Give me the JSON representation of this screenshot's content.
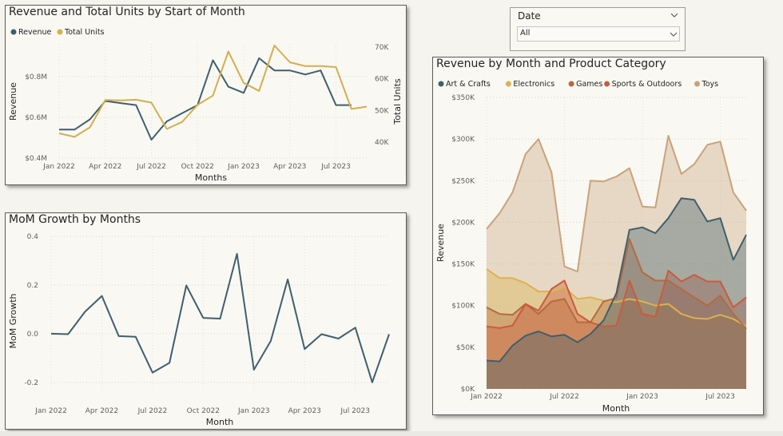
{
  "slicer": {
    "title": "Date",
    "value": "All"
  },
  "chart_data": [
    {
      "type": "line",
      "title": "Revenue and Total Units by Start of Month",
      "xlabel": "Months",
      "ylabel": "Revenue",
      "y2label": "Total Units",
      "x": [
        "2022-01",
        "2022-02",
        "2022-03",
        "2022-04",
        "2022-05",
        "2022-06",
        "2022-07",
        "2022-08",
        "2022-09",
        "2022-10",
        "2022-11",
        "2022-12",
        "2023-01",
        "2023-02",
        "2023-03",
        "2023-04",
        "2023-05",
        "2023-06",
        "2023-07",
        "2023-08",
        "2023-09"
      ],
      "x_ticks": [
        "Jan 2022",
        "Apr 2022",
        "Jul 2022",
        "Oct 2022",
        "Jan 2023",
        "Apr 2023",
        "Jul 2023"
      ],
      "y_ticks": [
        "$0.4M",
        "$0.6M",
        "$0.8M"
      ],
      "y2_ticks": [
        "40K",
        "50K",
        "60K",
        "70K"
      ],
      "ylim": [
        0.4,
        0.96
      ],
      "y2lim": [
        35,
        71
      ],
      "legend_position": "top-left",
      "series": [
        {
          "name": "Revenue",
          "axis": "left",
          "color": "#3f5f6d",
          "values": [
            0.54,
            0.54,
            0.59,
            0.68,
            0.67,
            0.66,
            0.49,
            0.58,
            0.62,
            0.66,
            0.88,
            0.75,
            0.72,
            0.89,
            0.83,
            0.83,
            0.81,
            0.83,
            0.66,
            0.66,
            null
          ]
        },
        {
          "name": "Total Units",
          "axis": "right",
          "color": "#d4ae4f",
          "values": [
            42.8,
            41.7,
            44.7,
            53.3,
            53.2,
            53.4,
            52.5,
            44.2,
            46.4,
            51.8,
            54.7,
            68.6,
            58.7,
            56.2,
            70.5,
            65.2,
            64.0,
            64.0,
            63.7,
            50.5,
            51.2
          ]
        }
      ],
      "grid": true
    },
    {
      "type": "line",
      "title": "MoM Growth by Months",
      "xlabel": "Month",
      "ylabel": "MoM Growth",
      "x": [
        "2022-01",
        "2022-02",
        "2022-03",
        "2022-04",
        "2022-05",
        "2022-06",
        "2022-07",
        "2022-08",
        "2022-09",
        "2022-10",
        "2022-11",
        "2022-12",
        "2023-01",
        "2023-02",
        "2023-03",
        "2023-04",
        "2023-05",
        "2023-06",
        "2023-07",
        "2023-08",
        "2023-09"
      ],
      "x_ticks": [
        "Jan 2022",
        "Apr 2022",
        "Jul 2022",
        "Oct 2022",
        "Jan 2023",
        "Apr 2023",
        "Jul 2023"
      ],
      "y_ticks": [
        "-0.2",
        "0.0",
        "0.2",
        "0.4"
      ],
      "ylim": [
        -0.24,
        0.4
      ],
      "series": [
        {
          "color": "#3f5f6d",
          "values": [
            0.0,
            -0.002,
            0.09,
            0.155,
            -0.01,
            -0.013,
            -0.16,
            -0.12,
            0.198,
            0.065,
            0.062,
            0.328,
            -0.148,
            -0.03,
            0.223,
            -0.063,
            -0.002,
            -0.02,
            0.025,
            -0.2,
            -0.002
          ]
        }
      ],
      "grid": true
    },
    {
      "type": "area",
      "title": "Revenue by Month and Product Category",
      "xlabel": "Month",
      "ylabel": "Revenue",
      "x": [
        "2022-01",
        "2022-02",
        "2022-03",
        "2022-04",
        "2022-05",
        "2022-06",
        "2022-07",
        "2022-08",
        "2022-09",
        "2022-10",
        "2022-11",
        "2022-12",
        "2023-01",
        "2023-02",
        "2023-03",
        "2023-04",
        "2023-05",
        "2023-06",
        "2023-07",
        "2023-08",
        "2023-09"
      ],
      "x_ticks": [
        "Jan 2022",
        "Jul 2022",
        "Jan 2023",
        "Jul 2023"
      ],
      "y_ticks": [
        "$0K",
        "$50K",
        "$100K",
        "$150K",
        "$200K",
        "$250K",
        "$300K",
        "$350K"
      ],
      "ylim": [
        0,
        350
      ],
      "legend_position": "top-left",
      "series": [
        {
          "name": "Toys",
          "color": "#c9a27a",
          "values": [
            192,
            211,
            236,
            282,
            300,
            260,
            147,
            141,
            250,
            249,
            255,
            265,
            219,
            218,
            304,
            258,
            270,
            293,
            297,
            236,
            214
          ]
        },
        {
          "name": "Electronics",
          "color": "#ddb24e",
          "values": [
            144,
            133,
            133,
            127,
            117,
            117,
            122,
            108,
            110,
            106,
            104,
            108,
            105,
            100,
            102,
            90,
            85,
            84,
            89,
            84,
            75
          ]
        },
        {
          "name": "Games",
          "color": "#b36b3f",
          "values": [
            98,
            90,
            89,
            102,
            90,
            105,
            108,
            80,
            80,
            105,
            109,
            180,
            140,
            130,
            130,
            120,
            110,
            100,
            112,
            90,
            72
          ]
        },
        {
          "name": "Sports & Outdoors",
          "color": "#cc5a3c",
          "values": [
            75,
            73,
            76,
            102,
            94,
            120,
            130,
            90,
            80,
            75,
            76,
            130,
            90,
            87,
            142,
            129,
            137,
            129,
            129,
            98,
            110
          ]
        },
        {
          "name": "Art & Crafts",
          "color": "#3f5f6d",
          "values": [
            34,
            33,
            52,
            64,
            69,
            63,
            65,
            56,
            66,
            82,
            115,
            191,
            194,
            187,
            205,
            229,
            227,
            201,
            205,
            155,
            185
          ]
        }
      ],
      "legend_order": [
        "Art & Crafts",
        "Electronics",
        "Games",
        "Sports & Outdoors",
        "Toys"
      ],
      "grid": true
    }
  ]
}
